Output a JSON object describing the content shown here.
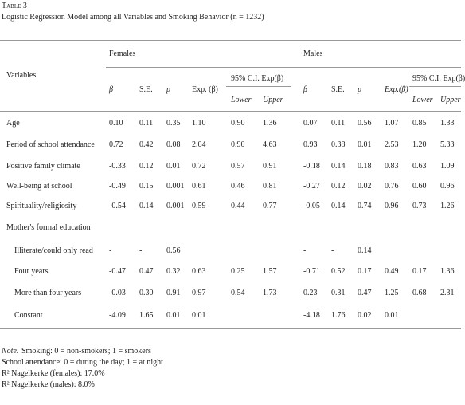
{
  "header": {
    "label": "Table 3",
    "title": "Logistic Regression Model among all Variables and Smoking Behavior (n = 1232)"
  },
  "table": {
    "row_header": "Variables",
    "groups": [
      "Females",
      "Males"
    ],
    "ci_header": [
      "95% C.I. Exp(β)",
      "95% C.I. Exp(β)"
    ],
    "columns": [
      "β",
      "S.E.",
      "p",
      "Exp. (β)",
      "Lower",
      "Upper",
      "β",
      "S.E.",
      "p",
      "Exp.(β)",
      "Lower",
      "Upper"
    ],
    "rows": [
      {
        "label": "Age",
        "cells": [
          "0.10",
          "0.11",
          "0.35",
          "1.10",
          "0.90",
          "1.36",
          "0.07",
          "0.11",
          "0.56",
          "1.07",
          "0.85",
          "1.33"
        ]
      },
      {
        "label": "Period of school attendance",
        "cells": [
          "0.72",
          "0.42",
          "0.08",
          "2.04",
          "0.90",
          "4.63",
          "0.93",
          "0.38",
          "0.01",
          "2.53",
          "1.20",
          "5.33"
        ]
      },
      {
        "label": "Positive family climate",
        "cells": [
          "-0.33",
          "0.12",
          "0.01",
          "0.72",
          "0.57",
          "0.91",
          "-0.18",
          "0.14",
          "0.18",
          "0.83",
          "0.63",
          "1.09"
        ]
      },
      {
        "label": "Well-being at school",
        "cells": [
          "-0.49",
          "0.15",
          "0.001",
          "0.61",
          "0.46",
          "0.81",
          "-0.27",
          "0.12",
          "0.02",
          "0.76",
          "0.60",
          "0.96"
        ]
      },
      {
        "label": "Spirituality/religiosity",
        "cells": [
          "-0.54",
          "0.14",
          "0.001",
          "0.59",
          "0.44",
          "0.77",
          "-0.05",
          "0.14",
          "0.74",
          "0.96",
          "0.73",
          "1.26"
        ]
      },
      {
        "label": "Mother's formal education",
        "cells": [
          null,
          null,
          null,
          null,
          null,
          null,
          null,
          null,
          null,
          null,
          null,
          null
        ]
      },
      {
        "label": "Illiterate/could only read",
        "indent": true,
        "cells": [
          "-",
          "-",
          "0.56",
          null,
          null,
          null,
          "-",
          "-",
          "0.14",
          null,
          null,
          null
        ]
      },
      {
        "label": "Four years",
        "indent": true,
        "cells": [
          "-0.47",
          "0.47",
          "0.32",
          "0.63",
          "0.25",
          "1.57",
          "-0.71",
          "0.52",
          "0.17",
          "0.49",
          "0.17",
          "1.36"
        ]
      },
      {
        "label": "More than four years",
        "indent": true,
        "cells": [
          "-0.03",
          "0.30",
          "0.91",
          "0.97",
          "0.54",
          "1.73",
          "0.23",
          "0.31",
          "0.47",
          "1.25",
          "0.68",
          "2.31"
        ]
      },
      {
        "label": "Constant",
        "indent": true,
        "cells": [
          "-4.09",
          "1.65",
          "0.01",
          "0.01",
          null,
          null,
          "-4.18",
          "1.76",
          "0.02",
          "0.01",
          null,
          null
        ]
      }
    ]
  },
  "notes": {
    "note_label": "Note.",
    "lines": [
      "Smoking: 0 = non-smokers; 1 = smokers",
      "School attendance: 0 = during the day; 1 = at night",
      "R² Nagelkerke (females): 17.0%",
      "R² Nagelkerke (males): 8.0%"
    ]
  }
}
